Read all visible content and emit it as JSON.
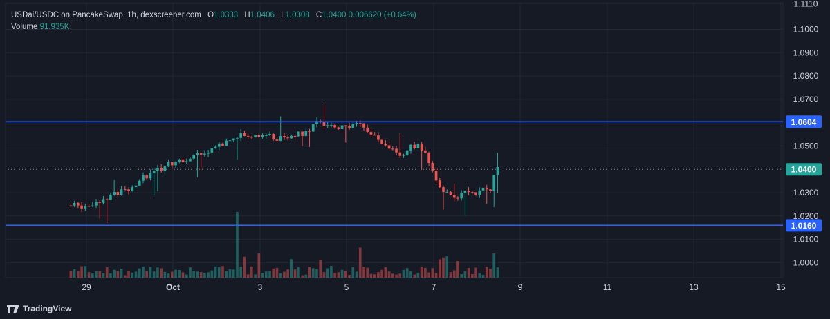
{
  "legend": {
    "pair": "USDai/USDC on PancakeSwap, 1h, dexscreener.com",
    "open_label": "O",
    "open": "1.0333",
    "high_label": "H",
    "high": "1.0406",
    "low_label": "L",
    "low": "1.0308",
    "close_label": "C",
    "close": "1.0400",
    "change": "0.006620 (+0.64%)",
    "volume_label": "Volume",
    "volume": "91.935K"
  },
  "footer": {
    "brand": "TradingView",
    "logo_icon": "tradingview-logo-icon"
  },
  "colors": {
    "background": "#161a25",
    "grid": "#232733",
    "up": "#26a69a",
    "down": "#ef5350",
    "level_line": "#2962ff",
    "level_label_bg": "#2962ff",
    "price_label_bg": "#26a69a",
    "axis_text": "#d1d4dc"
  },
  "chart_data": {
    "type": "candlestick",
    "x_axis": {
      "ticks": [
        "29",
        "Oct",
        "3",
        "5",
        "7",
        "9",
        "11",
        "13",
        "15"
      ],
      "range_days": [
        "Sep 28",
        "Oct 15"
      ]
    },
    "y_axis": {
      "ticks": [
        "1.1110",
        "1.1000",
        "1.0900",
        "1.0800",
        "1.0700",
        "1.0500",
        "1.0300",
        "1.0200",
        "1.0100",
        "1.0000"
      ],
      "range": [
        0.9936,
        1.1114
      ],
      "position": "right"
    },
    "grid": true,
    "horizontal_lines": [
      {
        "price": 1.0604,
        "label": "1.0604",
        "style": "solid"
      },
      {
        "price": 1.016,
        "label": "1.0160",
        "style": "solid"
      }
    ],
    "last_price": {
      "price": 1.04,
      "label": "1.0400",
      "style": "dotted"
    },
    "price_path_anchors": [
      [
        0.0,
        1.0245
      ],
      [
        0.12,
        1.0265
      ],
      [
        0.25,
        1.028
      ],
      [
        0.33,
        1.03
      ],
      [
        0.45,
        1.031
      ],
      [
        0.55,
        1.0335
      ],
      [
        0.66,
        1.0365
      ],
      [
        0.8,
        1.0398
      ],
      [
        0.95,
        1.0418
      ],
      [
        1.05,
        1.043
      ],
      [
        1.16,
        1.0448
      ],
      [
        1.25,
        1.0462
      ],
      [
        1.37,
        1.0478
      ],
      [
        1.55,
        1.0502
      ],
      [
        1.7,
        1.0545
      ],
      [
        1.9,
        1.055
      ],
      [
        2.05,
        1.055
      ],
      [
        2.2,
        1.0535
      ],
      [
        2.37,
        1.0545
      ],
      [
        2.52,
        1.056
      ],
      [
        2.65,
        1.06
      ],
      [
        2.85,
        1.058
      ],
      [
        3.0,
        1.0585
      ],
      [
        3.12,
        1.0595
      ],
      [
        3.2,
        1.0585
      ],
      [
        3.3,
        1.054
      ],
      [
        3.43,
        1.0515
      ],
      [
        3.55,
        1.048
      ],
      [
        3.62,
        1.0462
      ],
      [
        3.72,
        1.05
      ],
      [
        3.85,
        1.0498
      ],
      [
        3.92,
        1.045
      ],
      [
        4.0,
        1.038
      ],
      [
        4.07,
        1.033
      ],
      [
        4.14,
        1.03
      ],
      [
        4.25,
        1.028
      ],
      [
        4.35,
        1.03
      ],
      [
        4.42,
        1.0318
      ],
      [
        4.5,
        1.029
      ],
      [
        4.58,
        1.031
      ],
      [
        4.66,
        1.0315
      ],
      [
        4.72,
        1.04
      ]
    ],
    "volume_note": "volume histogram along the bottom of the plot"
  }
}
